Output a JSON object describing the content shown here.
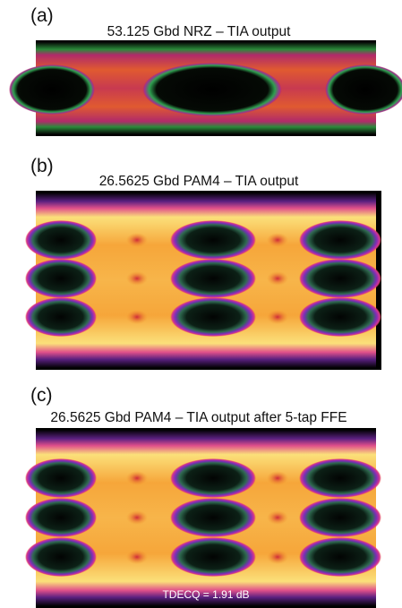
{
  "panels": [
    {
      "label": "(a)",
      "title": "53.125 Gbd NRZ – TIA output"
    },
    {
      "label": "(b)",
      "title": "26.5625 Gbd PAM4 – TIA output"
    },
    {
      "label": "(c)",
      "title": "26.5625 Gbd PAM4 – TIA output after 5-tap FFE",
      "annotation": "TDECQ = 1.91 dB"
    }
  ]
}
